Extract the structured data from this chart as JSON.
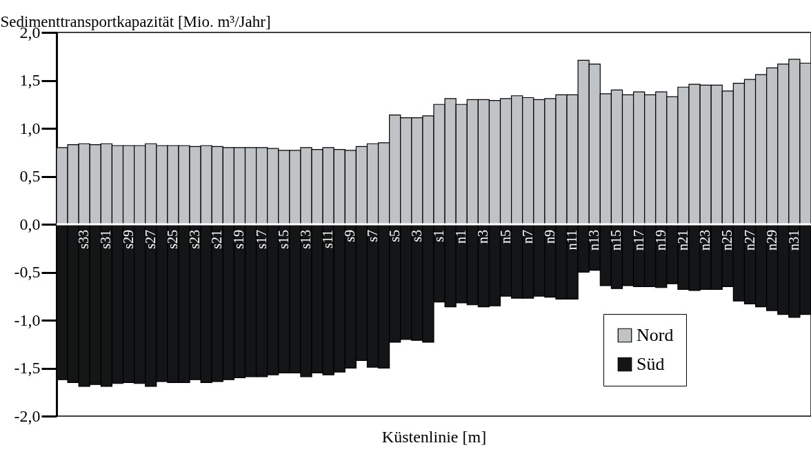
{
  "chart_data": {
    "type": "bar",
    "ylabel": "Sedimenttransportkapazität [Mio. m³/Jahr]",
    "xlabel": "Küstenlinie [m]",
    "categories": [
      null,
      null,
      "s33",
      null,
      "s31",
      null,
      "s29",
      null,
      "s27",
      null,
      "s25",
      null,
      "s23",
      null,
      "s21",
      null,
      "s19",
      null,
      "s17",
      null,
      "s15",
      null,
      "s13",
      null,
      "s11",
      null,
      "s9",
      null,
      "s7",
      null,
      "s5",
      null,
      "s3",
      null,
      "s1",
      null,
      "n1",
      null,
      "n3",
      null,
      "n5",
      null,
      "n7",
      null,
      "n9",
      null,
      "n11",
      null,
      "n13",
      null,
      "n15",
      null,
      "n17",
      null,
      "n19",
      null,
      "n21",
      null,
      "n23",
      null,
      "n25",
      null,
      "n27",
      null,
      "n29",
      null,
      "n31",
      null
    ],
    "series": [
      {
        "name": "Nord",
        "color": "#c0c3c5",
        "values": [
          0.8,
          0.83,
          0.84,
          0.83,
          0.84,
          0.82,
          0.82,
          0.82,
          0.84,
          0.82,
          0.82,
          0.82,
          0.81,
          0.82,
          0.81,
          0.8,
          0.8,
          0.8,
          0.8,
          0.79,
          0.77,
          0.77,
          0.8,
          0.78,
          0.8,
          0.78,
          0.77,
          0.81,
          0.84,
          0.85,
          1.14,
          1.11,
          1.11,
          1.13,
          1.25,
          1.31,
          1.25,
          1.3,
          1.3,
          1.29,
          1.31,
          1.34,
          1.32,
          1.3,
          1.31,
          1.35,
          1.35,
          1.71,
          1.67,
          1.36,
          1.4,
          1.35,
          1.38,
          1.35,
          1.38,
          1.33,
          1.43,
          1.46,
          1.45,
          1.45,
          1.39,
          1.47,
          1.51,
          1.56,
          1.63,
          1.67,
          1.72,
          1.68
        ]
      },
      {
        "name": "Süd",
        "color": "#141517",
        "values": [
          -1.62,
          -1.65,
          -1.69,
          -1.67,
          -1.69,
          -1.66,
          -1.65,
          -1.66,
          -1.69,
          -1.64,
          -1.65,
          -1.65,
          -1.62,
          -1.65,
          -1.64,
          -1.62,
          -1.6,
          -1.59,
          -1.59,
          -1.57,
          -1.55,
          -1.55,
          -1.59,
          -1.55,
          -1.57,
          -1.54,
          -1.5,
          -1.42,
          -1.49,
          -1.5,
          -1.23,
          -1.2,
          -1.21,
          -1.23,
          -0.81,
          -0.86,
          -0.82,
          -0.84,
          -0.86,
          -0.85,
          -0.75,
          -0.77,
          -0.77,
          -0.75,
          -0.76,
          -0.78,
          -0.78,
          -0.5,
          -0.48,
          -0.64,
          -0.67,
          -0.64,
          -0.65,
          -0.65,
          -0.66,
          -0.62,
          -0.68,
          -0.69,
          -0.68,
          -0.68,
          -0.65,
          -0.8,
          -0.83,
          -0.86,
          -0.9,
          -0.94,
          -0.97,
          -0.94
        ]
      }
    ],
    "ylim": [
      -2.0,
      2.0
    ],
    "yticks": [
      {
        "value": -2.0,
        "label": "-2,0"
      },
      {
        "value": -1.5,
        "label": "-1,5"
      },
      {
        "value": -1.0,
        "label": "-1,0"
      },
      {
        "value": -0.5,
        "label": "-0,5"
      },
      {
        "value": 0.0,
        "label": "0,0"
      },
      {
        "value": 0.5,
        "label": "0,5"
      },
      {
        "value": 1.0,
        "label": "1,0"
      },
      {
        "value": 1.5,
        "label": "1,5"
      },
      {
        "value": 2.0,
        "label": "2,0"
      }
    ],
    "stacked": true,
    "grid": false,
    "legend": "bottom right"
  }
}
